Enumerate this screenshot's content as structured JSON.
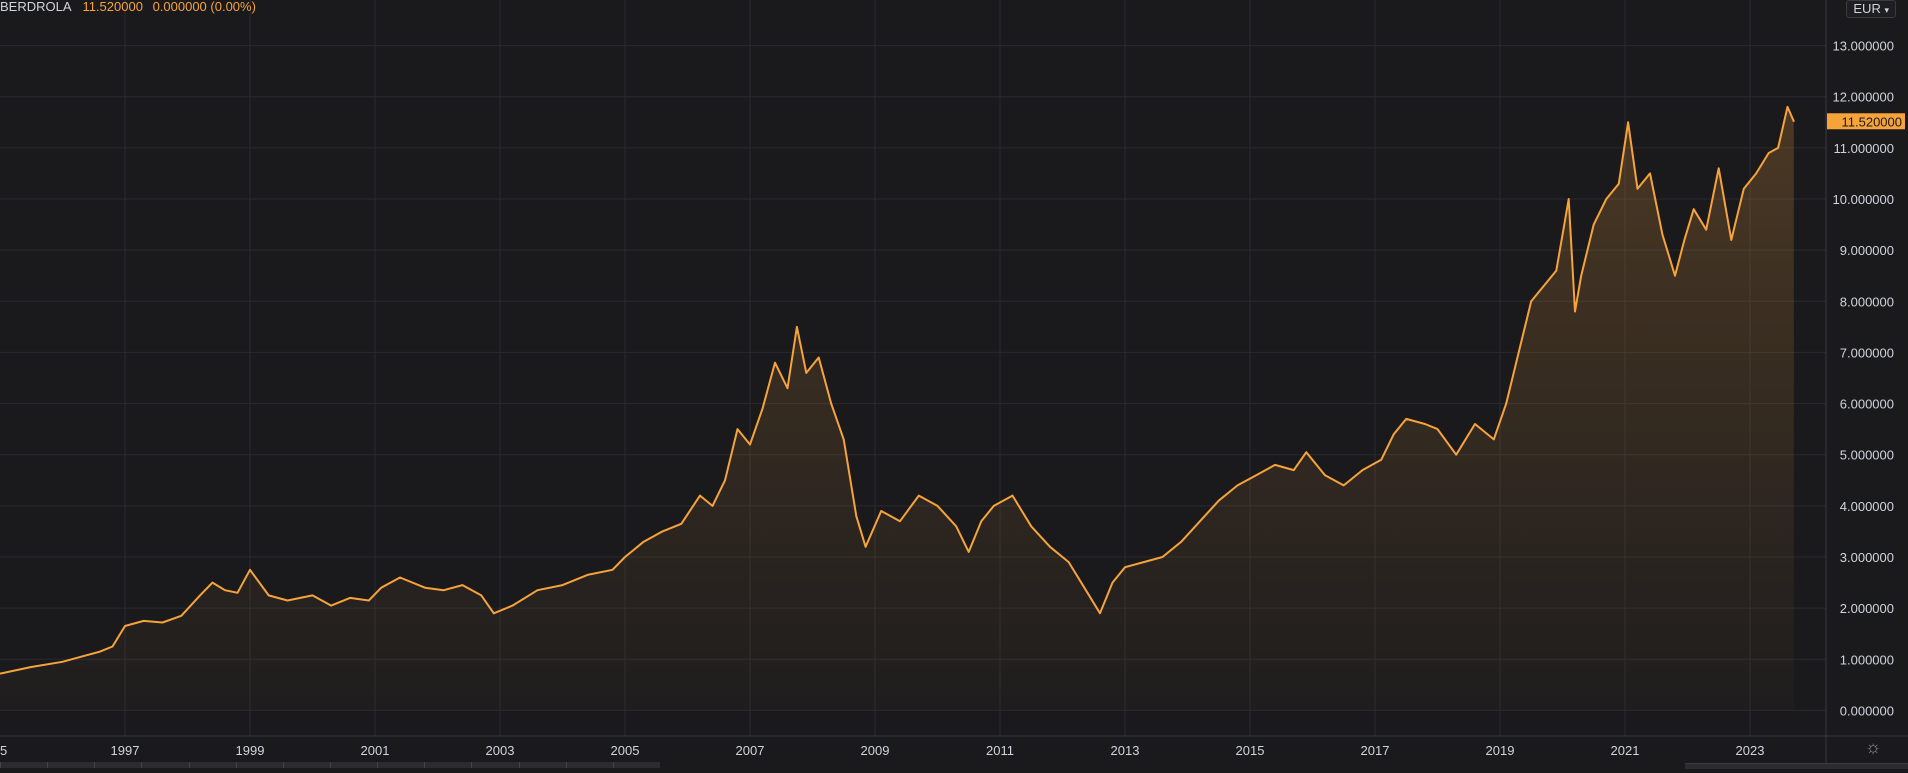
{
  "legend": {
    "symbol": "BERDROLA",
    "value": "11.520000",
    "change": "0.000000 (0.00%)"
  },
  "currency": {
    "label": "EUR",
    "icon": "chevron-down-icon"
  },
  "settings": {
    "icon": "gear-icon"
  },
  "colors": {
    "background": "#1a1a1d",
    "line": "#f7a33b",
    "grid": "#2a2a2e",
    "text": "#d1d4dc"
  },
  "chart_data": {
    "type": "area",
    "title": "",
    "xlabel": "",
    "ylabel": "",
    "xlim": [
      1995.0,
      2024.2
    ],
    "ylim": [
      -0.5,
      13.5
    ],
    "x_ticks": [
      "1997",
      "1999",
      "2001",
      "2003",
      "2005",
      "2007",
      "2009",
      "2011",
      "2013",
      "2015",
      "2017",
      "2019",
      "2021",
      "2023"
    ],
    "x_tick_values": [
      1997,
      1999,
      2001,
      2003,
      2005,
      2007,
      2009,
      2011,
      2013,
      2015,
      2017,
      2019,
      2021,
      2023
    ],
    "first_tick_partial": "5",
    "y_ticks": [
      "0.000000",
      "1.000000",
      "2.000000",
      "3.000000",
      "4.000000",
      "5.000000",
      "6.000000",
      "7.000000",
      "8.000000",
      "9.000000",
      "10.000000",
      "11.000000",
      "12.000000",
      "13.000000"
    ],
    "y_tick_values": [
      0,
      1,
      2,
      3,
      4,
      5,
      6,
      7,
      8,
      9,
      10,
      11,
      12,
      13
    ],
    "last_price": 11.52,
    "last_price_label": "11.520000",
    "grid": true,
    "series": [
      {
        "x": [
          1995.0,
          1995.5,
          1996.0,
          1996.3,
          1996.6,
          1996.8,
          1997.0,
          1997.3,
          1997.6,
          1997.9,
          1998.2,
          1998.4,
          1998.6,
          1998.8,
          1999.0,
          1999.3,
          1999.6,
          2000.0,
          2000.3,
          2000.6,
          2000.9,
          2001.1,
          2001.4,
          2001.8,
          2002.1,
          2002.4,
          2002.7,
          2002.9,
          2003.2,
          2003.6,
          2004.0,
          2004.4,
          2004.8,
          2005.0,
          2005.3,
          2005.6,
          2005.9,
          2006.2,
          2006.4,
          2006.6,
          2006.8,
          2007.0,
          2007.2,
          2007.4,
          2007.6,
          2007.75,
          2007.9,
          2008.1,
          2008.3,
          2008.5,
          2008.7,
          2008.85,
          2009.1,
          2009.4,
          2009.7,
          2010.0,
          2010.3,
          2010.5,
          2010.7,
          2010.9,
          2011.2,
          2011.5,
          2011.8,
          2012.1,
          2012.4,
          2012.6,
          2012.8,
          2013.0,
          2013.3,
          2013.6,
          2013.9,
          2014.2,
          2014.5,
          2014.8,
          2015.1,
          2015.4,
          2015.7,
          2015.9,
          2016.2,
          2016.5,
          2016.8,
          2017.1,
          2017.3,
          2017.5,
          2017.8,
          2018.0,
          2018.3,
          2018.6,
          2018.9,
          2019.1,
          2019.3,
          2019.5,
          2019.7,
          2019.9,
          2020.1,
          2020.2,
          2020.3,
          2020.5,
          2020.7,
          2020.9,
          2021.05,
          2021.2,
          2021.4,
          2021.6,
          2021.8,
          2021.95,
          2022.1,
          2022.3,
          2022.5,
          2022.7,
          2022.9,
          2023.1,
          2023.3,
          2023.45,
          2023.6,
          2023.7
        ],
        "y": [
          0.72,
          0.85,
          0.95,
          1.05,
          1.15,
          1.25,
          1.65,
          1.75,
          1.72,
          1.85,
          2.25,
          2.5,
          2.35,
          2.3,
          2.75,
          2.25,
          2.15,
          2.25,
          2.05,
          2.2,
          2.15,
          2.4,
          2.6,
          2.4,
          2.35,
          2.45,
          2.25,
          1.9,
          2.05,
          2.35,
          2.45,
          2.65,
          2.75,
          3.0,
          3.3,
          3.5,
          3.65,
          4.2,
          4.0,
          4.5,
          5.5,
          5.2,
          5.9,
          6.8,
          6.3,
          7.5,
          6.6,
          6.9,
          6.0,
          5.3,
          3.8,
          3.2,
          3.9,
          3.7,
          4.2,
          4.0,
          3.6,
          3.1,
          3.7,
          4.0,
          4.2,
          3.6,
          3.2,
          2.9,
          2.3,
          1.9,
          2.5,
          2.8,
          2.9,
          3.0,
          3.3,
          3.7,
          4.1,
          4.4,
          4.6,
          4.8,
          4.7,
          5.05,
          4.6,
          4.4,
          4.7,
          4.9,
          5.4,
          5.7,
          5.6,
          5.5,
          5.0,
          5.6,
          5.3,
          6.0,
          7.0,
          8.0,
          8.3,
          8.6,
          10.0,
          7.8,
          8.5,
          9.5,
          10.0,
          10.3,
          11.5,
          10.2,
          10.5,
          9.3,
          8.5,
          9.2,
          9.8,
          9.4,
          10.6,
          9.2,
          10.2,
          10.5,
          10.9,
          11.0,
          11.8,
          11.52
        ],
        "fill": true
      }
    ]
  }
}
